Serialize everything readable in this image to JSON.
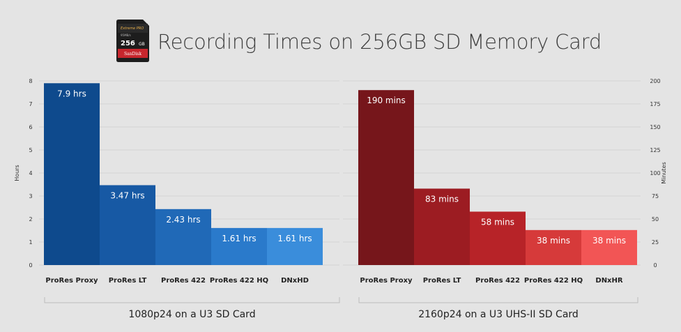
{
  "header": {
    "title": "Recording Times on 256GB SD Memory Card",
    "card_logo": {
      "capacity": "256",
      "brand": "SanDisk",
      "line": "Extreme PRO"
    }
  },
  "colors": {
    "background": "#e4e4e4",
    "blue_series": [
      "#0e4a8d",
      "#1759a4",
      "#2069b7",
      "#2a7acb",
      "#3a8ddb"
    ],
    "red_series": [
      "#76161b",
      "#9c1c22",
      "#b72328",
      "#d63a3a",
      "#f25555"
    ]
  },
  "chart_data": [
    {
      "type": "bar",
      "title": "",
      "xlabel": "1080p24 on a U3 SD Card",
      "ylabel": "Hours",
      "ylim": [
        0,
        8
      ],
      "yticks": [
        0,
        1,
        2,
        3,
        4,
        5,
        6,
        7,
        8
      ],
      "y_axis_side": "left",
      "grid": true,
      "categories": [
        "ProRes Proxy",
        "ProRes LT",
        "ProRes 422",
        "ProRes 422 HQ",
        "DNxHD"
      ],
      "values": [
        7.9,
        3.47,
        2.43,
        1.61,
        1.61
      ],
      "labels": [
        "7.9 hrs",
        "3.47 hrs",
        "2.43 hrs",
        "1.61 hrs",
        "1.61 hrs"
      ]
    },
    {
      "type": "bar",
      "title": "",
      "xlabel": "2160p24 on a U3 UHS-II SD Card",
      "ylabel": "Minutes",
      "ylim": [
        0,
        200
      ],
      "yticks": [
        0,
        25,
        50,
        75,
        100,
        125,
        150,
        175,
        200
      ],
      "y_axis_side": "right",
      "grid": true,
      "categories": [
        "ProRes Proxy",
        "ProRes LT",
        "ProRes 422",
        "ProRes 422 HQ",
        "DNxHR"
      ],
      "values": [
        190,
        83,
        58,
        38,
        38
      ],
      "labels": [
        "190 mins",
        "83 mins",
        "58 mins",
        "38 mins",
        "38 mins"
      ]
    }
  ]
}
